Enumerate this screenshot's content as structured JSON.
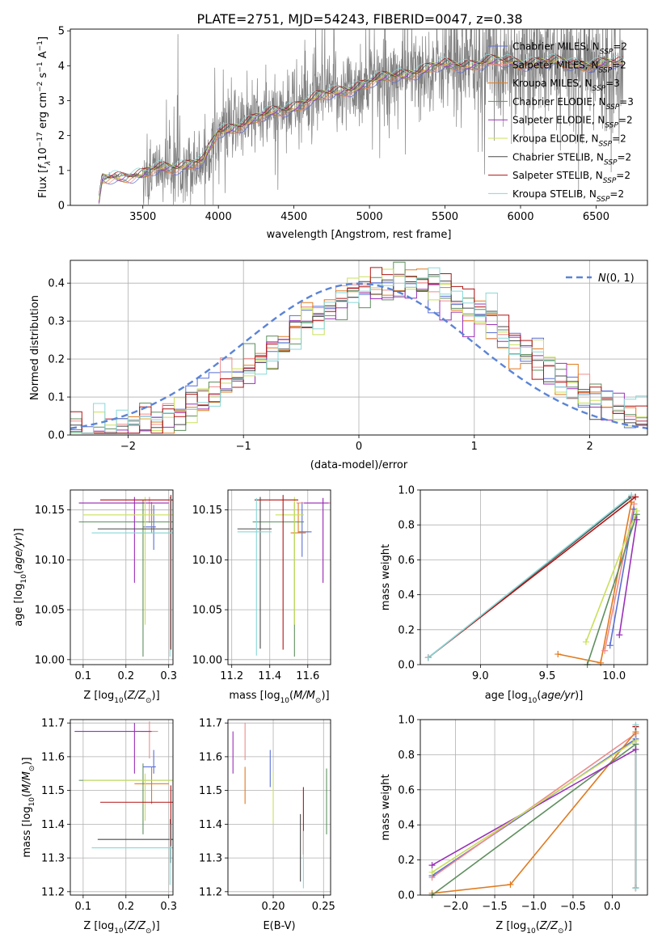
{
  "figure": {
    "title": "PLATE=2751, MJD=54243, FIBERID=0047, z=0.38"
  },
  "models": [
    {
      "name": "Chabrier MILES",
      "nssp": "2",
      "color": "#5b6fd6"
    },
    {
      "name": "Salpeter MILES",
      "nssp": "2",
      "color": "#ee8c8c"
    },
    {
      "name": "Kroupa MILES",
      "nssp": "3",
      "color": "#e07b20"
    },
    {
      "name": "Chabrier ELODIE",
      "nssp": "3",
      "color": "#5f8f5f"
    },
    {
      "name": "Salpeter ELODIE",
      "nssp": "2",
      "color": "#9b30b8"
    },
    {
      "name": "Kroupa ELODIE",
      "nssp": "2",
      "color": "#c9e05a"
    },
    {
      "name": "Chabrier STELIB",
      "nssp": "2",
      "color": "#4a4a4a"
    },
    {
      "name": "Salpeter STELIB",
      "nssp": "2",
      "color": "#b01515"
    },
    {
      "name": "Kroupa STELIB",
      "nssp": "2",
      "color": "#88d8d8"
    }
  ],
  "chart_data": [
    {
      "id": "spectrum",
      "type": "line",
      "xlabel": "wavelength [Angstrom, rest frame]",
      "ylabel": "Flux [f_λ 10^-17 erg cm^-2 s^-1 A^-1]",
      "xlim": [
        3020,
        6840
      ],
      "ylim": [
        0,
        5.05
      ],
      "xticks": [
        3500,
        4000,
        4500,
        5000,
        5500,
        6000,
        6500
      ],
      "yticks": [
        0,
        1,
        2,
        3,
        4,
        5
      ],
      "data_range": [
        3210,
        6680
      ],
      "continuum_knots": [
        [
          3210,
          0.1
        ],
        [
          3230,
          0.75
        ],
        [
          3300,
          0.85
        ],
        [
          3500,
          0.85
        ],
        [
          3600,
          1.05
        ],
        [
          3900,
          1.25
        ],
        [
          4000,
          2.1
        ],
        [
          4300,
          2.55
        ],
        [
          4600,
          3.0
        ],
        [
          4900,
          3.4
        ],
        [
          5200,
          3.75
        ],
        [
          5500,
          4.0
        ],
        [
          5800,
          4.1
        ],
        [
          6100,
          4.1
        ],
        [
          6400,
          4.05
        ],
        [
          6680,
          4.05
        ]
      ],
      "legend": "upper right",
      "grid": false
    },
    {
      "id": "residuals",
      "type": "histogram",
      "xlabel": "(data-model)/error",
      "ylabel": "Normed distribution",
      "xlim": [
        -2.5,
        2.5
      ],
      "ylim": [
        0,
        0.46
      ],
      "xticks": [
        -2,
        -1,
        0,
        1,
        2
      ],
      "yticks": [
        0.0,
        0.1,
        0.2,
        0.3,
        0.4
      ],
      "bin_width": 0.1,
      "reference_curve": {
        "label": "N(0,1)",
        "mean": 0,
        "sigma": 1,
        "color": "#5b84d6"
      },
      "model_histogram": {
        "type": "normal",
        "mean": 0.35,
        "sigma": 1.0,
        "peak": 0.4
      },
      "legend": "upper right",
      "grid": true
    },
    {
      "id": "age_vs_Z",
      "type": "errorbar",
      "xlabel": "Z [log10(Z/Z☉)]",
      "ylabel": "age [log10(age/yr)]",
      "xlim": [
        0.07,
        0.31
      ],
      "ylim": [
        9.995,
        10.17
      ],
      "xticks": [
        0.1,
        0.2,
        0.3
      ],
      "yticks": [
        10.0,
        10.05,
        10.1,
        10.15
      ],
      "points": [
        {
          "x": 0.265,
          "y": 10.133,
          "xerr": [
            0.025,
            0.005
          ],
          "yerr": [
            0.023,
            0.022
          ]
        },
        {
          "x": 0.255,
          "y": 10.157,
          "xerr": [
            0.165,
            0.045
          ],
          "yerr": [
            0.02,
            0.006
          ]
        },
        {
          "x": 0.26,
          "y": 10.127,
          "xerr": [
            0.04,
            0.04
          ],
          "yerr": [
            0.0,
            0.031
          ]
        },
        {
          "x": 0.24,
          "y": 10.138,
          "xerr": [
            0.15,
            0.07
          ],
          "yerr": [
            0.135,
            0.022
          ]
        },
        {
          "x": 0.22,
          "y": 10.157,
          "xerr": [
            0.13,
            0.08
          ],
          "yerr": [
            0.08,
            0.006
          ]
        },
        {
          "x": 0.245,
          "y": 10.145,
          "xerr": [
            0.145,
            0.065
          ],
          "yerr": [
            0.11,
            0.018
          ]
        },
        {
          "x": 0.304,
          "y": 10.131,
          "xerr": [
            0.17,
            0.006
          ],
          "yerr": [
            0.12,
            0.032
          ]
        },
        {
          "x": 0.305,
          "y": 10.16,
          "xerr": [
            0.165,
            0.005
          ],
          "yerr": [
            0.15,
            0.005
          ]
        },
        {
          "x": 0.303,
          "y": 10.127,
          "xerr": [
            0.183,
            0.007
          ],
          "yerr": [
            0.124,
            0.035
          ]
        }
      ],
      "grid": true
    },
    {
      "id": "age_vs_mass",
      "type": "errorbar",
      "xlabel": "mass [log10(M/M☉)]",
      "ylabel": "",
      "xlim": [
        11.18,
        11.72
      ],
      "ylim": [
        9.995,
        10.17
      ],
      "xticks": [
        11.2,
        11.4,
        11.6
      ],
      "yticks": [
        10.0,
        10.05,
        10.1,
        10.15
      ],
      "points": [
        {
          "x": 11.57,
          "y": 10.128,
          "xerr": [
            0.02,
            0.05
          ],
          "yerr": [
            0.025,
            0.03
          ]
        },
        {
          "x": 11.68,
          "y": 10.157,
          "xerr": [
            0.14,
            0.04
          ],
          "yerr": [
            0.08,
            0.005
          ]
        },
        {
          "x": 11.55,
          "y": 10.127,
          "xerr": [
            0.04,
            0.04
          ],
          "yerr": [
            0.0,
            0.03
          ]
        },
        {
          "x": 11.53,
          "y": 10.138,
          "xerr": [
            0.22,
            0.05
          ],
          "yerr": [
            0.135,
            0.02
          ]
        },
        {
          "x": 11.68,
          "y": 10.157,
          "xerr": [
            0.1,
            0.03
          ],
          "yerr": [
            0.08,
            0.005
          ]
        },
        {
          "x": 11.53,
          "y": 10.145,
          "xerr": [
            0.1,
            0.05
          ],
          "yerr": [
            0.11,
            0.018
          ]
        },
        {
          "x": 11.35,
          "y": 10.131,
          "xerr": [
            0.12,
            0.06
          ],
          "yerr": [
            0.12,
            0.032
          ]
        },
        {
          "x": 11.47,
          "y": 10.16,
          "xerr": [
            0.15,
            0.08
          ],
          "yerr": [
            0.15,
            0.005
          ]
        },
        {
          "x": 11.33,
          "y": 10.128,
          "xerr": [
            0.1,
            0.08
          ],
          "yerr": [
            0.124,
            0.034
          ]
        }
      ],
      "grid": true
    },
    {
      "id": "weight_vs_age",
      "type": "line",
      "xlabel": "age [log10(age/yr)]",
      "ylabel": "mass weight",
      "xlim": [
        8.55,
        10.25
      ],
      "ylim": [
        0,
        1.0
      ],
      "xticks": [
        9.0,
        9.5,
        10.0
      ],
      "yticks": [
        0.0,
        0.2,
        0.4,
        0.6,
        0.8,
        1.0
      ],
      "series": [
        {
          "points": [
            [
              9.97,
              0.11
            ],
            [
              10.15,
              0.89
            ]
          ]
        },
        {
          "points": [
            [
              9.93,
              0.08
            ],
            [
              10.15,
              0.92
            ]
          ]
        },
        {
          "points": [
            [
              9.58,
              0.06
            ],
            [
              9.9,
              0.01
            ],
            [
              10.13,
              0.93
            ]
          ]
        },
        {
          "points": [
            [
              9.8,
              0.0
            ],
            [
              10.17,
              0.86
            ]
          ]
        },
        {
          "points": [
            [
              10.04,
              0.17
            ],
            [
              10.17,
              0.83
            ]
          ]
        },
        {
          "points": [
            [
              9.79,
              0.13
            ],
            [
              10.17,
              0.88
            ]
          ]
        },
        {
          "points": [
            [
              8.61,
              0.04
            ],
            [
              10.13,
              0.96
            ]
          ]
        },
        {
          "points": [
            [
              8.61,
              0.04
            ],
            [
              10.16,
              0.96
            ]
          ]
        },
        {
          "points": [
            [
              8.61,
              0.04
            ],
            [
              10.13,
              0.97
            ]
          ]
        }
      ],
      "grid": true
    },
    {
      "id": "mass_vs_Z",
      "type": "errorbar",
      "xlabel": "Z [log10(Z/Z☉)]",
      "ylabel": "mass [log10(M/M☉)]",
      "xlim": [
        0.07,
        0.31
      ],
      "ylim": [
        11.19,
        11.71
      ],
      "xticks": [
        0.1,
        0.2,
        0.3
      ],
      "yticks": [
        11.2,
        11.3,
        11.4,
        11.5,
        11.6,
        11.7
      ],
      "points": [
        {
          "x": 0.265,
          "y": 11.57,
          "xerr": [
            0.025,
            0.005
          ],
          "yerr": [
            0.02,
            0.05
          ]
        },
        {
          "x": 0.255,
          "y": 11.675,
          "xerr": [
            0.02,
            0.02
          ],
          "yerr": [
            0.08,
            0.03
          ]
        },
        {
          "x": 0.26,
          "y": 11.52,
          "xerr": [
            0.04,
            0.04
          ],
          "yerr": [
            0.06,
            0.05
          ]
        },
        {
          "x": 0.24,
          "y": 11.53,
          "xerr": [
            0.15,
            0.07
          ],
          "yerr": [
            0.16,
            0.05
          ]
        },
        {
          "x": 0.22,
          "y": 11.675,
          "xerr": [
            0.14,
            0.04
          ],
          "yerr": [
            0.125,
            0.025
          ]
        },
        {
          "x": 0.245,
          "y": 11.53,
          "xerr": [
            0.145,
            0.065
          ],
          "yerr": [
            0.12,
            0.02
          ]
        },
        {
          "x": 0.304,
          "y": 11.355,
          "xerr": [
            0.17,
            0.006
          ],
          "yerr": [
            0.07,
            0.06
          ]
        },
        {
          "x": 0.305,
          "y": 11.465,
          "xerr": [
            0.165,
            0.005
          ],
          "yerr": [
            0.13,
            0.05
          ]
        },
        {
          "x": 0.303,
          "y": 11.33,
          "xerr": [
            0.183,
            0.007
          ],
          "yerr": [
            0.11,
            0.07
          ]
        }
      ],
      "grid": true
    },
    {
      "id": "mass_vs_EBV",
      "type": "errorbar",
      "xlabel": "E(B-V)",
      "ylabel": "",
      "xlim": [
        0.155,
        0.257
      ],
      "ylim": [
        11.19,
        11.71
      ],
      "xticks": [
        0.15,
        0.2,
        0.25
      ],
      "yticks": [
        11.2,
        11.3,
        11.4,
        11.5,
        11.6,
        11.7
      ],
      "points": [
        {
          "x": 0.197,
          "y": 11.565,
          "yerr": [
            0.055,
            0.055
          ]
        },
        {
          "x": 0.172,
          "y": 11.64,
          "yerr": [
            0.05,
            0.06
          ]
        },
        {
          "x": 0.172,
          "y": 11.52,
          "yerr": [
            0.06,
            0.05
          ]
        },
        {
          "x": 0.253,
          "y": 11.47,
          "yerr": [
            0.1,
            0.095
          ]
        },
        {
          "x": 0.16,
          "y": 11.61,
          "yerr": [
            0.06,
            0.065
          ]
        },
        {
          "x": 0.2,
          "y": 11.48,
          "yerr": [
            0.08,
            0.075
          ]
        },
        {
          "x": 0.227,
          "y": 11.33,
          "yerr": [
            0.1,
            0.1
          ]
        },
        {
          "x": 0.23,
          "y": 11.41,
          "yerr": [
            0.1,
            0.1
          ]
        },
        {
          "x": 0.23,
          "y": 11.29,
          "yerr": [
            0.08,
            0.09
          ]
        }
      ],
      "grid": true
    },
    {
      "id": "weight_vs_Z",
      "type": "line",
      "xlabel": "Z [log10(Z/Z☉)]",
      "ylabel": "mass weight",
      "xlim": [
        -2.45,
        0.45
      ],
      "ylim": [
        0,
        1.0
      ],
      "xticks": [
        -2.0,
        -1.5,
        -1.0,
        -0.5,
        0.0
      ],
      "yticks": [
        0.0,
        0.2,
        0.4,
        0.6,
        0.8,
        1.0
      ],
      "series": [
        {
          "points": [
            [
              -2.3,
              0.11
            ],
            [
              0.3,
              0.89
            ]
          ]
        },
        {
          "points": [
            [
              -2.3,
              0.1
            ],
            [
              0.3,
              0.92
            ]
          ]
        },
        {
          "points": [
            [
              -2.3,
              0.01
            ],
            [
              -1.3,
              0.06
            ],
            [
              0.3,
              0.93
            ]
          ]
        },
        {
          "points": [
            [
              -2.3,
              0.0
            ],
            [
              0.3,
              0.86
            ]
          ]
        },
        {
          "points": [
            [
              -2.3,
              0.17
            ],
            [
              0.3,
              0.83
            ]
          ]
        },
        {
          "points": [
            [
              -2.3,
              0.13
            ],
            [
              0.3,
              0.88
            ]
          ]
        },
        {
          "points": [
            [
              0.3,
              0.04
            ],
            [
              0.3,
              0.96
            ]
          ]
        },
        {
          "points": [
            [
              0.3,
              0.04
            ],
            [
              0.3,
              0.96
            ]
          ]
        },
        {
          "points": [
            [
              0.3,
              0.04
            ],
            [
              0.3,
              0.97
            ]
          ]
        }
      ],
      "grid": true
    }
  ]
}
